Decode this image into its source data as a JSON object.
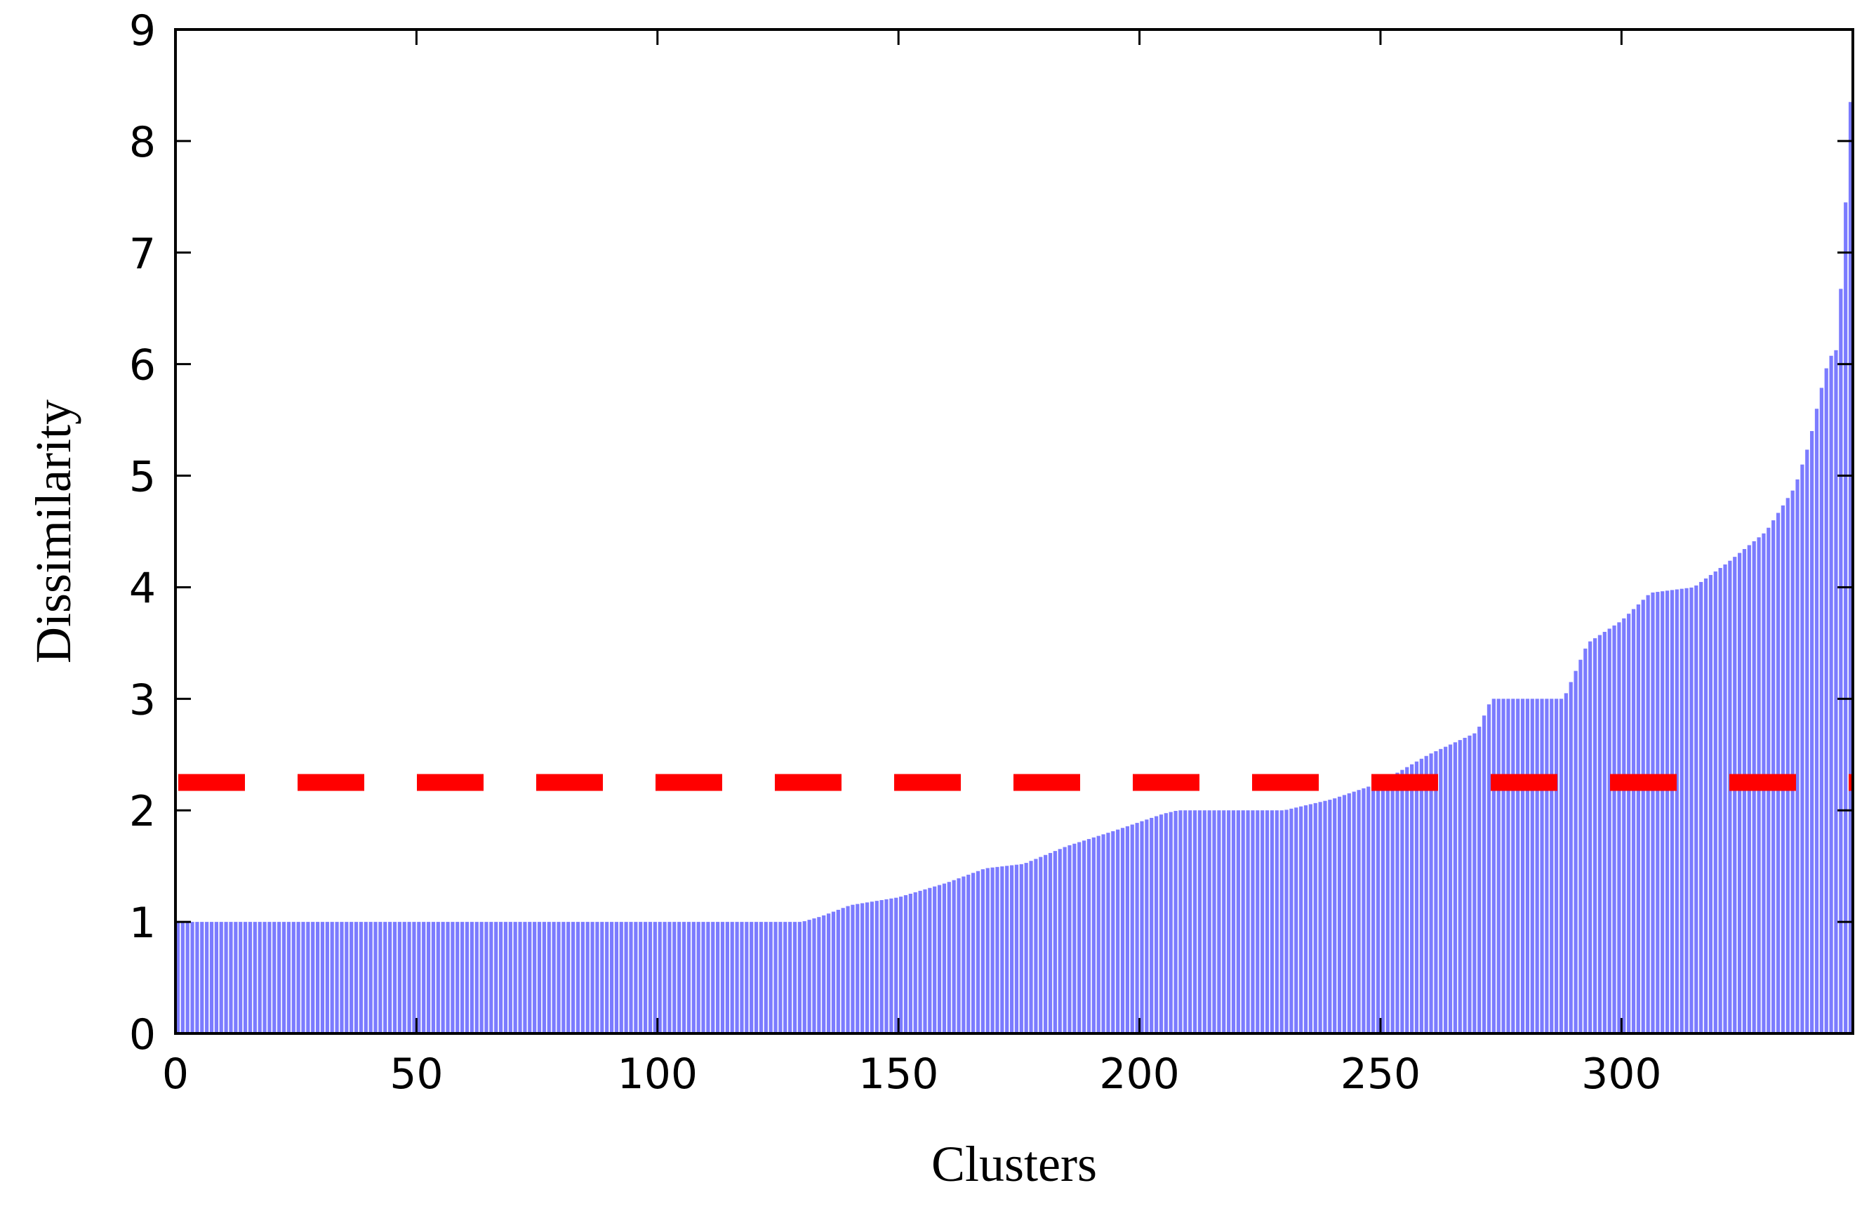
{
  "chart_data": {
    "type": "bar",
    "title": "",
    "xlabel": "Clusters",
    "ylabel": "Dissimilarity",
    "xlim": [
      0,
      348
    ],
    "ylim": [
      0,
      9
    ],
    "xticks": [
      0,
      50,
      100,
      150,
      200,
      250,
      300
    ],
    "yticks": [
      0,
      1,
      2,
      3,
      4,
      5,
      6,
      7,
      8,
      9
    ],
    "grid": false,
    "bar_color": "#7b7bff",
    "threshold": {
      "value": 2.25,
      "color": "#ff0000",
      "style": "dashed"
    },
    "profile": [
      [
        0,
        1.0
      ],
      [
        130,
        1.0
      ],
      [
        134,
        1.05
      ],
      [
        140,
        1.15
      ],
      [
        150,
        1.22
      ],
      [
        160,
        1.35
      ],
      [
        168,
        1.48
      ],
      [
        176,
        1.52
      ],
      [
        185,
        1.68
      ],
      [
        195,
        1.82
      ],
      [
        205,
        1.97
      ],
      [
        208,
        2.0
      ],
      [
        230,
        2.0
      ],
      [
        240,
        2.1
      ],
      [
        250,
        2.25
      ],
      [
        260,
        2.5
      ],
      [
        270,
        2.7
      ],
      [
        273,
        3.0
      ],
      [
        288,
        3.0
      ],
      [
        293,
        3.5
      ],
      [
        300,
        3.7
      ],
      [
        306,
        3.95
      ],
      [
        315,
        4.0
      ],
      [
        322,
        4.22
      ],
      [
        330,
        4.5
      ],
      [
        336,
        4.9
      ],
      [
        339,
        5.3
      ],
      [
        341,
        5.7
      ],
      [
        343,
        6.05
      ],
      [
        345,
        6.15
      ],
      [
        346,
        7.2
      ],
      [
        347,
        7.7
      ],
      [
        348,
        9.0
      ]
    ]
  }
}
